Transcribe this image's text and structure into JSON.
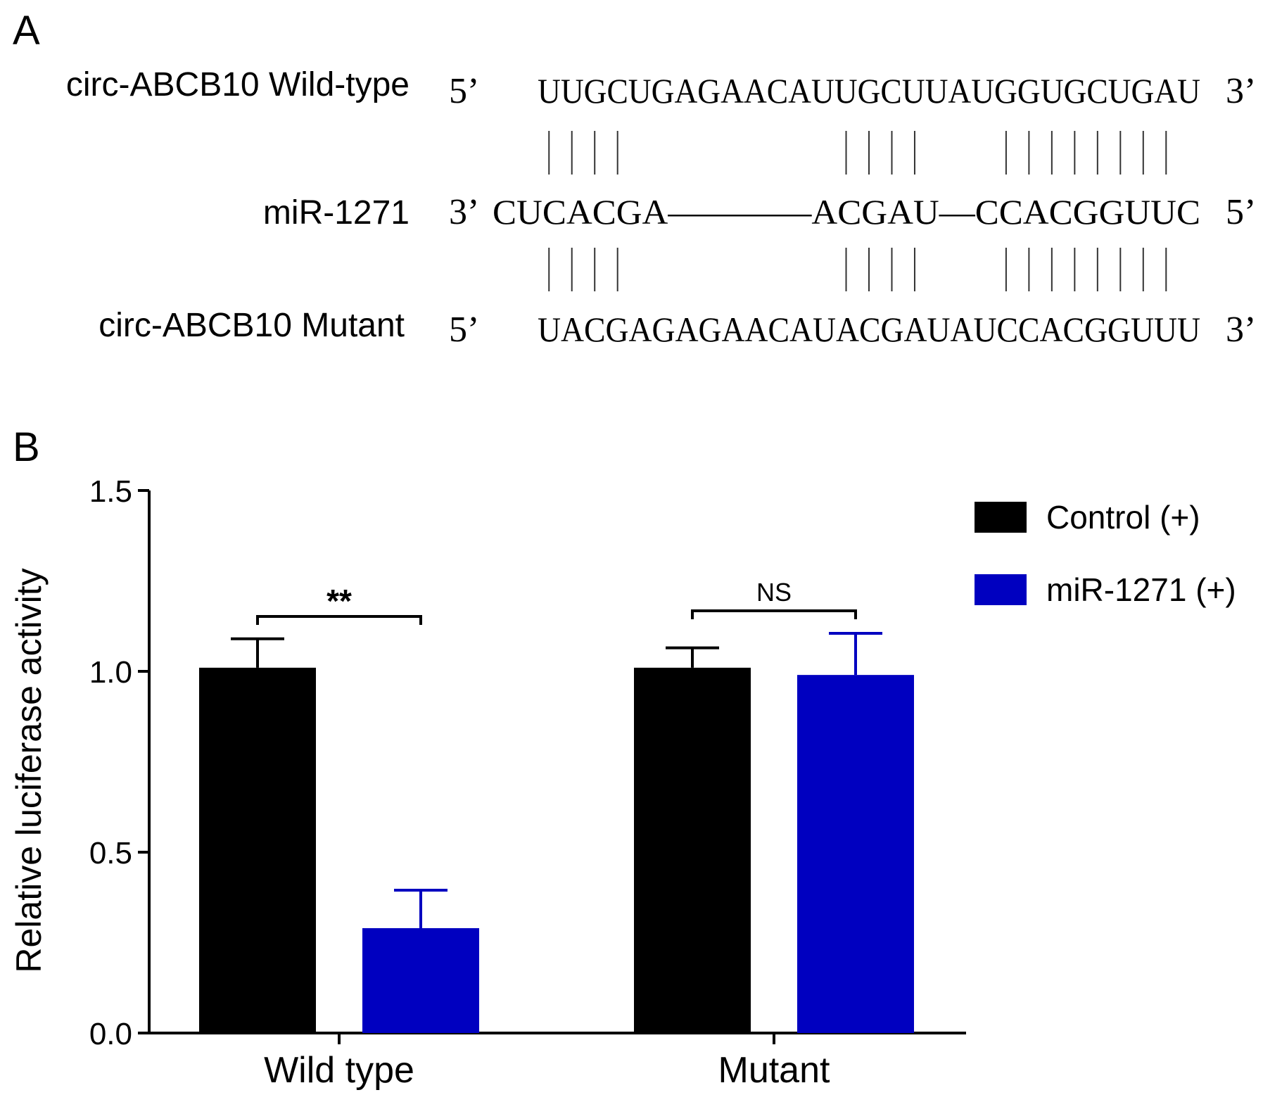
{
  "panel_a": {
    "label": "A",
    "rows": [
      {
        "name": "circ-ABCB10 Wild-type",
        "left_end": "5’",
        "sequence": "UUGCUGAGAACAUUGCUUAUGGUGCUGAU",
        "right_end": "3’"
      },
      {
        "name": "miR-1271",
        "left_end": "3’",
        "sequence": "CUCACGA––––––––ACGAU––CCACGGUUC",
        "right_end": "5’"
      },
      {
        "name": "circ-ABCB10 Mutant",
        "left_end": "5’",
        "sequence": "UACGAGAGAACAUACGAUAUCCACGGUUU",
        "right_end": "3’"
      }
    ],
    "pairing_groups": [
      [
        0,
        1,
        2,
        3
      ],
      [
        13,
        14,
        15,
        16
      ],
      [
        20,
        21,
        22,
        23,
        24,
        25,
        26,
        27
      ]
    ]
  },
  "chart_data": {
    "panel_label": "B",
    "type": "bar",
    "categories": [
      "Wild type",
      "Mutant"
    ],
    "series": [
      {
        "name": "Control (+)",
        "color": "#000000",
        "values": [
          1.01,
          1.01
        ],
        "errors": [
          0.08,
          0.055
        ]
      },
      {
        "name": "miR-1271 (+)",
        "color": "#0000c0",
        "values": [
          0.29,
          0.99
        ],
        "errors": [
          0.105,
          0.115
        ]
      }
    ],
    "ylabel": "Relative luciferase activity",
    "xlabel": "",
    "ylim": [
      0,
      1.5
    ],
    "yticks": [
      0.0,
      0.5,
      1.0,
      1.5
    ],
    "ytick_labels": [
      "0.0",
      "0.5",
      "1.0",
      "1.5"
    ],
    "grid": false,
    "legend_position": "top-right",
    "significance": [
      {
        "category": "Wild type",
        "label": "**"
      },
      {
        "category": "Mutant",
        "label": "NS"
      }
    ]
  }
}
